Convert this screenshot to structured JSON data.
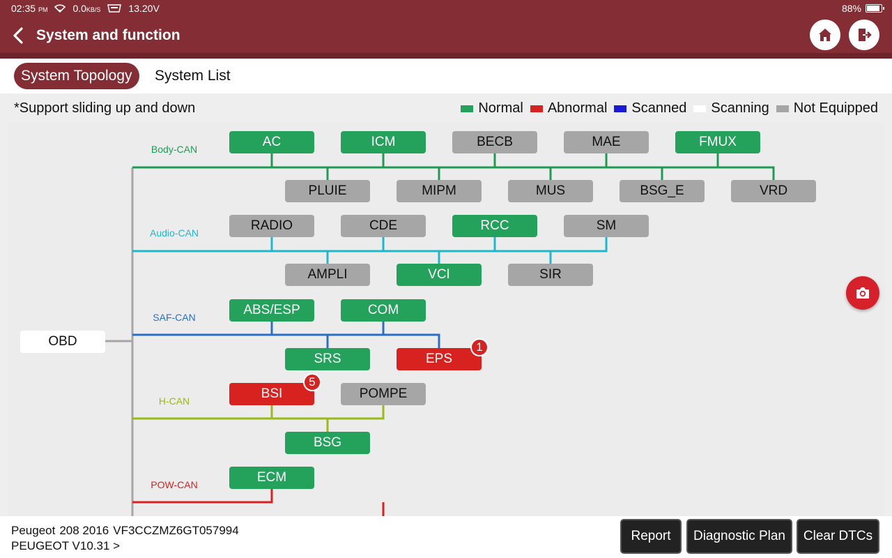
{
  "status": {
    "time": "02:35",
    "ampm": "PM",
    "net_speed": "0.0",
    "net_unit": "KB/S",
    "voltage": "13.20V",
    "battery": "88%",
    "battery_level": 0.88
  },
  "header": {
    "title": "System and function",
    "home_icon": "home-icon",
    "exit_icon": "exit-icon"
  },
  "tabs": [
    {
      "label": "System Topology",
      "active": true
    },
    {
      "label": "System List",
      "active": false
    }
  ],
  "hint": "*Support sliding up and down",
  "legend": [
    {
      "label": "Normal",
      "color": "#24a25c"
    },
    {
      "label": "Abnormal",
      "color": "#d8221f"
    },
    {
      "label": "Scanned",
      "color": "#1a1ad6"
    },
    {
      "label": "Scanning",
      "color": "#ffffff"
    },
    {
      "label": "Not Equipped",
      "color": "#a6a6a6"
    }
  ],
  "topology": {
    "root": "OBD",
    "buses": [
      {
        "name": "Body-CAN",
        "color": "#1f9a55",
        "top": [
          {
            "label": "AC",
            "status": "normal"
          },
          {
            "label": "ICM",
            "status": "normal"
          },
          {
            "label": "BECB",
            "status": "not_equipped"
          },
          {
            "label": "MAE",
            "status": "not_equipped"
          },
          {
            "label": "FMUX",
            "status": "normal"
          }
        ],
        "bottom": [
          {
            "label": "PLUIE",
            "status": "not_equipped"
          },
          {
            "label": "MIPM",
            "status": "not_equipped"
          },
          {
            "label": "MUS",
            "status": "not_equipped"
          },
          {
            "label": "BSG_E",
            "status": "not_equipped"
          },
          {
            "label": "VRD",
            "status": "not_equipped"
          }
        ]
      },
      {
        "name": "Audio-CAN",
        "color": "#1fb8c8",
        "top": [
          {
            "label": "RADIO",
            "status": "not_equipped"
          },
          {
            "label": "CDE",
            "status": "not_equipped"
          },
          {
            "label": "RCC",
            "status": "normal"
          },
          {
            "label": "SM",
            "status": "not_equipped"
          }
        ],
        "bottom": [
          {
            "label": "AMPLI",
            "status": "not_equipped"
          },
          {
            "label": "VCI",
            "status": "normal"
          },
          {
            "label": "SIR",
            "status": "not_equipped"
          }
        ]
      },
      {
        "name": "SAF-CAN",
        "color": "#2b6fc4",
        "top": [
          {
            "label": "ABS/ESP",
            "status": "normal"
          },
          {
            "label": "COM",
            "status": "normal"
          }
        ],
        "bottom": [
          {
            "label": "SRS",
            "status": "normal"
          },
          {
            "label": "EPS",
            "status": "abnormal",
            "badge": "1"
          }
        ]
      },
      {
        "name": "H-CAN",
        "color": "#9ab81a",
        "top": [
          {
            "label": "BSI",
            "status": "abnormal",
            "badge": "5"
          },
          {
            "label": "POMPE",
            "status": "not_equipped"
          }
        ],
        "bottom": [
          {
            "label": "BSG",
            "status": "normal"
          }
        ]
      },
      {
        "name": "POW-CAN",
        "color": "#d8221f",
        "top": [
          {
            "label": "ECM",
            "status": "normal"
          }
        ],
        "bottom": []
      }
    ]
  },
  "camera_icon": "camera-icon",
  "vehicle": {
    "make": "Peugeot",
    "model_year": "208 2016",
    "vin": "VF3CCZMZ6GT057994",
    "software": "PEUGEOT V10.31 >"
  },
  "buttons": {
    "report": "Report",
    "plan": "Diagnostic Plan",
    "clear": "Clear DTCs"
  }
}
